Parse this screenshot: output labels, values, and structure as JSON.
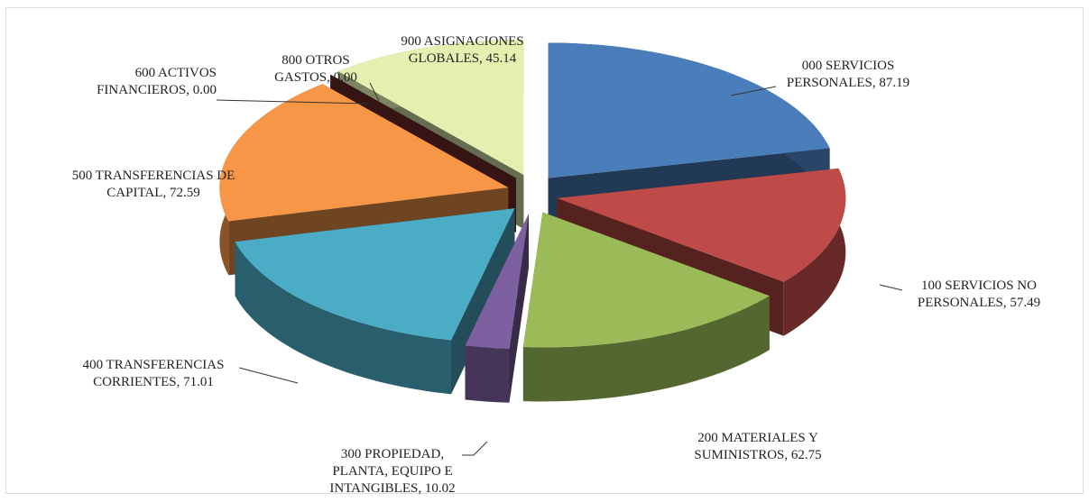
{
  "chart_data": {
    "type": "pie3d",
    "categories": [
      "000 SERVICIOS PERSONALES",
      "100 SERVICIOS NO PERSONALES",
      "200 MATERIALES Y SUMINISTROS",
      "300 PROPIEDAD, PLANTA, EQUIPO E INTANGIBLES",
      "400 TRANSFERENCIAS CORRIENTES",
      "500 TRANSFERENCIAS DE CAPITAL",
      "600 ACTIVOS FINANCIEROS",
      "800 OTROS GASTOS",
      "900 ASIGNACIONES GLOBALES"
    ],
    "values": [
      87.19,
      57.49,
      62.75,
      10.02,
      71.01,
      72.59,
      0,
      0,
      45.14
    ],
    "value_labels": [
      "87.19",
      "57.49",
      "62.75",
      "10.02",
      "71.01",
      "72.59",
      "0.00",
      "0.00",
      "45.14"
    ],
    "colors": [
      "#4a7ebb",
      "#be4b48",
      "#9bbb59",
      "#7d60a0",
      "#4bacc6",
      "#f79646",
      "#2c4d75",
      "#772c2a",
      "#e3f0b0"
    ]
  }
}
